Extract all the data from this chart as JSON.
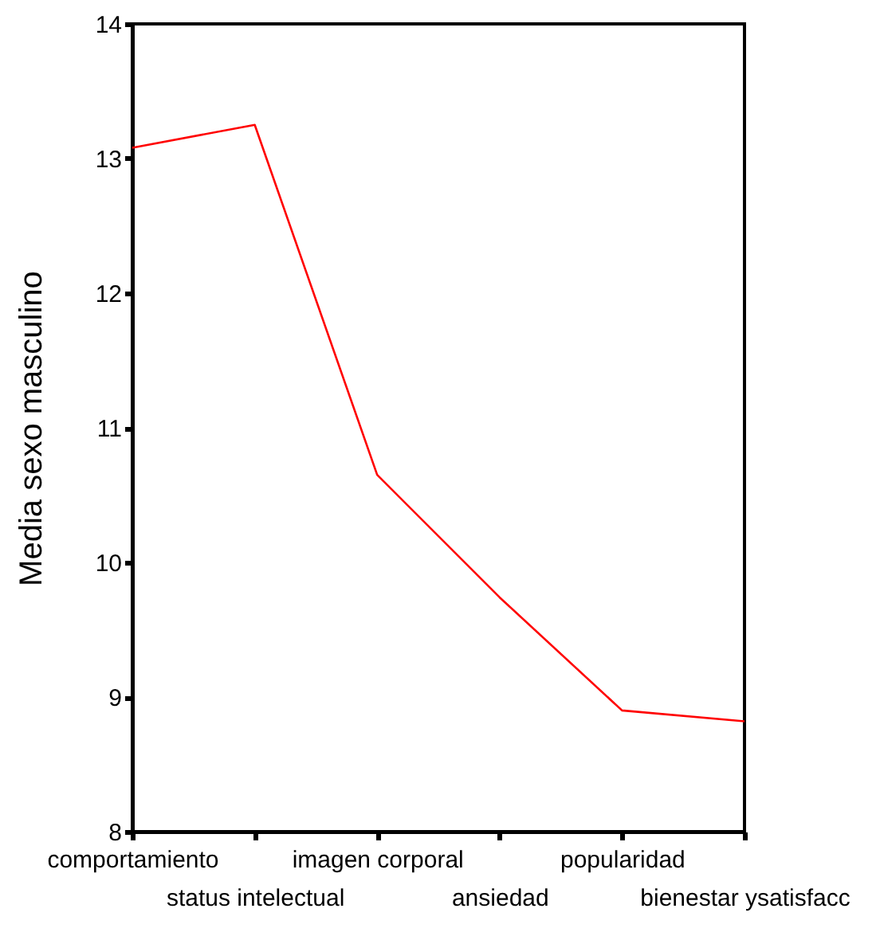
{
  "chart_data": {
    "type": "line",
    "ylabel": "Media sexo masculino",
    "categories": [
      "comportamiento",
      "status intelectual",
      "imagen corporal",
      "ansiedad",
      "popularidad",
      "bienestar ysatisfacc"
    ],
    "series": [
      {
        "color": "#ff0000",
        "values": [
          13.08,
          13.25,
          10.65,
          9.74,
          8.9,
          8.82
        ]
      }
    ],
    "ylim": [
      8,
      14
    ],
    "yticks": [
      8,
      9,
      10,
      11,
      12,
      13,
      14
    ],
    "grid": false,
    "marker": "none",
    "line_style": "solid"
  }
}
